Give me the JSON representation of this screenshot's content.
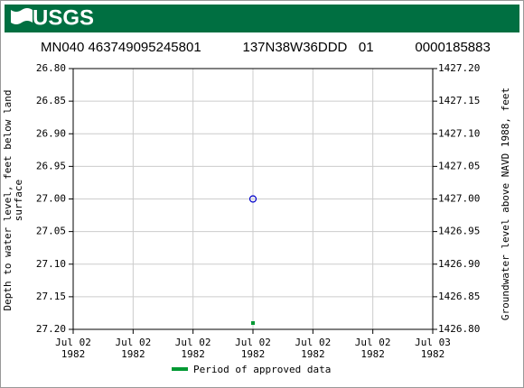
{
  "logo_text": "USGS",
  "chart_data": {
    "type": "scatter",
    "title": "MN040 463749095245801           137N38W36DDD   01           0000185883",
    "ylabel": "Depth to water level, feet below land\nsurface",
    "y2label": "Groundwater level above NAVD 1988, feet",
    "categories": [
      "Jul 02\n1982",
      "Jul 02\n1982",
      "Jul 02\n1982",
      "Jul 02\n1982",
      "Jul 02\n1982",
      "Jul 02\n1982",
      "Jul 03\n1982"
    ],
    "ylim": [
      27.2,
      26.8
    ],
    "yticks": [
      {
        "value": 26.8,
        "label": "26.80"
      },
      26.85,
      {
        "value": 26.9,
        "label": "26.90"
      },
      26.95,
      {
        "value": 27.0,
        "label": "27.00"
      },
      27.05,
      {
        "value": 27.1,
        "label": "27.10"
      },
      27.15,
      {
        "value": 27.2,
        "label": "27.20"
      }
    ],
    "y2lim": [
      1426.8,
      1427.2
    ],
    "y2ticks": [
      {
        "value": 1427.2,
        "label": "1427.20"
      },
      1427.15,
      {
        "value": 1427.1,
        "label": "1427.10"
      },
      1427.05,
      {
        "value": 1427.0,
        "label": "1427.00"
      },
      1426.95,
      {
        "value": 1426.9,
        "label": "1426.90"
      },
      1426.85,
      {
        "value": 1426.8,
        "label": "1426.80"
      }
    ],
    "grid": true,
    "series": [
      {
        "color": "#0000cc",
        "values": [
          null,
          null,
          null,
          27.0,
          null,
          null,
          null
        ]
      }
    ],
    "approved": {
      "name": "Period of approved data",
      "color": "#009933",
      "periods": [
        false,
        false,
        false,
        true,
        false,
        false,
        false
      ]
    }
  }
}
